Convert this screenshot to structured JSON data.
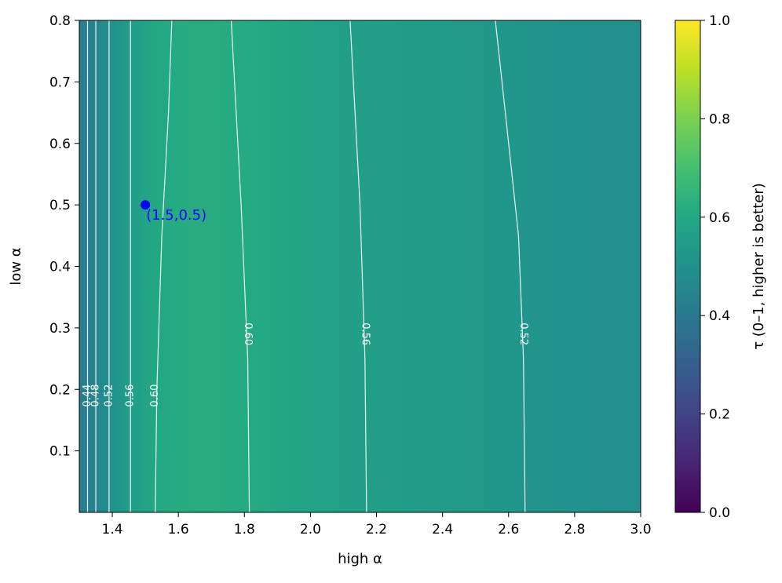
{
  "chart_data": {
    "type": "heatmap",
    "title": "",
    "xlabel": "high α",
    "ylabel": "low α",
    "xlim": [
      1.3,
      3.0
    ],
    "ylim": [
      0.0,
      0.8
    ],
    "xticks": [
      1.4,
      1.6,
      1.8,
      2.0,
      2.2,
      2.4,
      2.6,
      2.8,
      3.0
    ],
    "xtick_labels": [
      "1.4",
      "1.6",
      "1.8",
      "2.0",
      "2.2",
      "2.4",
      "2.6",
      "2.8",
      "3.0"
    ],
    "yticks": [
      0.1,
      0.2,
      0.3,
      0.4,
      0.5,
      0.6,
      0.7,
      0.8
    ],
    "ytick_labels": [
      "0.1",
      "0.2",
      "0.3",
      "0.4",
      "0.5",
      "0.6",
      "0.7",
      "0.8"
    ],
    "colormap": "viridis",
    "colorbar": {
      "label": "τ (0–1, higher is better)",
      "range": [
        0.0,
        1.0
      ],
      "ticks": [
        0.0,
        0.2,
        0.4,
        0.6,
        0.8,
        1.0
      ],
      "tick_labels": [
        "0.0",
        "0.2",
        "0.4",
        "0.6",
        "0.8",
        "1.0"
      ]
    },
    "tau_profile_vs_high_alpha": {
      "x": [
        1.3,
        1.32,
        1.34,
        1.37,
        1.41,
        1.46,
        1.53,
        1.6,
        1.7,
        1.8,
        1.9,
        2.0,
        2.15,
        2.3,
        2.45,
        2.6,
        2.8,
        3.0
      ],
      "tau": [
        0.42,
        0.43,
        0.445,
        0.475,
        0.515,
        0.555,
        0.595,
        0.615,
        0.618,
        0.608,
        0.595,
        0.58,
        0.562,
        0.548,
        0.534,
        0.522,
        0.506,
        0.492
      ]
    },
    "contours": [
      {
        "level_label": "0.44",
        "label_at": {
          "x": 1.325,
          "y": 0.19
        },
        "points": [
          [
            1.325,
            0.0
          ],
          [
            1.325,
            0.8
          ]
        ]
      },
      {
        "level_label": "0.48",
        "label_at": {
          "x": 1.35,
          "y": 0.19
        },
        "points": [
          [
            1.35,
            0.0
          ],
          [
            1.35,
            0.8
          ]
        ]
      },
      {
        "level_label": "0.52",
        "label_at": {
          "x": 1.39,
          "y": 0.19
        },
        "points": [
          [
            1.39,
            0.0
          ],
          [
            1.39,
            0.8
          ]
        ]
      },
      {
        "level_label": "0.56",
        "label_at": {
          "x": 1.455,
          "y": 0.19
        },
        "points": [
          [
            1.455,
            0.0
          ],
          [
            1.455,
            0.8
          ]
        ]
      },
      {
        "level_label": "0.60",
        "label_at": {
          "x": 1.53,
          "y": 0.19
        },
        "points": [
          [
            1.53,
            0.0
          ],
          [
            1.535,
            0.2
          ],
          [
            1.55,
            0.45
          ],
          [
            1.57,
            0.65
          ],
          [
            1.58,
            0.8
          ]
        ]
      },
      {
        "level_label": "0.60",
        "label_at": {
          "x": 1.81,
          "y": 0.29
        },
        "points": [
          [
            1.815,
            0.0
          ],
          [
            1.81,
            0.25
          ],
          [
            1.79,
            0.5
          ],
          [
            1.77,
            0.7
          ],
          [
            1.76,
            0.8
          ]
        ]
      },
      {
        "level_label": "0.56",
        "label_at": {
          "x": 2.165,
          "y": 0.29
        },
        "points": [
          [
            2.17,
            0.0
          ],
          [
            2.165,
            0.25
          ],
          [
            2.15,
            0.5
          ],
          [
            2.13,
            0.7
          ],
          [
            2.12,
            0.8
          ]
        ]
      },
      {
        "level_label": "0.52",
        "label_at": {
          "x": 2.645,
          "y": 0.29
        },
        "points": [
          [
            2.65,
            0.0
          ],
          [
            2.645,
            0.25
          ],
          [
            2.63,
            0.45
          ],
          [
            2.58,
            0.7
          ],
          [
            2.56,
            0.8
          ]
        ]
      }
    ],
    "annotation": {
      "text": "(1.5,0.5)",
      "x": 1.5,
      "y": 0.5,
      "color": "#0000ff"
    },
    "grid": false,
    "legend": "none"
  }
}
